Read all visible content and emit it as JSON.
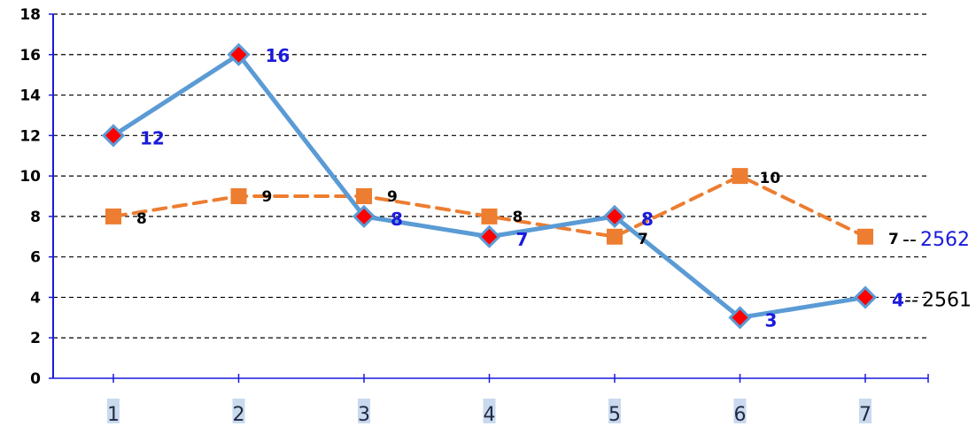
{
  "chart_data": {
    "type": "line",
    "x": [
      "1",
      "2",
      "3",
      "4",
      "5",
      "6",
      "7"
    ],
    "ylim": [
      0,
      18
    ],
    "yticks": [
      "0",
      "2",
      "4",
      "6",
      "8",
      "10",
      "12",
      "14",
      "16",
      "18"
    ],
    "grid": true,
    "series": [
      {
        "name": "2561",
        "values": [
          12,
          16,
          8,
          7,
          8,
          3,
          4
        ],
        "labels": [
          "12",
          "16",
          "8",
          "7",
          "8",
          "3",
          "4"
        ],
        "line_color": "#5b9bd5",
        "marker_color": "#ff0000",
        "label_color": "#1a1adc",
        "name_color": "#000000",
        "line_style": "solid",
        "marker": "diamond"
      },
      {
        "name": "2562",
        "values": [
          8,
          9,
          9,
          8,
          7,
          10,
          7
        ],
        "labels": [
          "8",
          "9",
          "9",
          "8",
          "7",
          "10",
          "7"
        ],
        "line_color": "#ed7d31",
        "marker_color": "#ed7d31",
        "label_color": "#000000",
        "name_color": "#1a1adc",
        "line_style": "dashed",
        "marker": "square"
      }
    ],
    "colors": {
      "y_axis": "#1a1adc",
      "x_axis": "#1a1adc",
      "grid": "#000000"
    }
  }
}
